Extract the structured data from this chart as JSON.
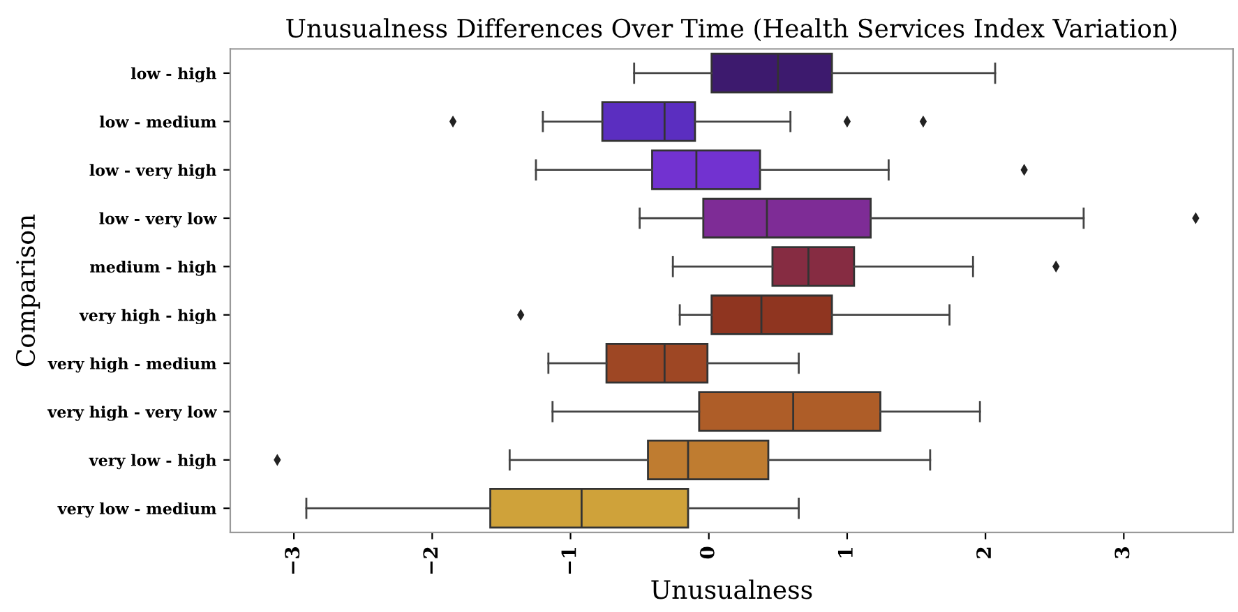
{
  "chart_data": {
    "type": "box",
    "orientation": "horizontal",
    "title": "Unusualness Differences Over Time (Health Services Index Variation)",
    "xlabel": "Unusualness",
    "ylabel": "Comparison",
    "categories": [
      "low - high",
      "low - medium",
      "low - very high",
      "low - very low",
      "medium - high",
      "very high - high",
      "very high - medium",
      "very high - very low",
      "very low - high",
      "very low - medium"
    ],
    "colors": [
      "#3d1a6e",
      "#5b2ec0",
      "#7232d0",
      "#7e2c96",
      "#862c42",
      "#8f3520",
      "#9e4724",
      "#ae5d28",
      "#bf7c30",
      "#cfa23a"
    ],
    "boxes": [
      {
        "low": -0.54,
        "q1": 0.02,
        "median": 0.5,
        "q3": 0.89,
        "high": 2.07
      },
      {
        "low": -1.2,
        "q1": -0.77,
        "median": -0.32,
        "q3": -0.1,
        "high": 0.59,
        "outliers": [
          -1.85,
          1.0,
          1.55
        ]
      },
      {
        "low": -1.25,
        "q1": -0.41,
        "median": -0.09,
        "q3": 0.37,
        "high": 1.3,
        "outliers": [
          2.28
        ]
      },
      {
        "low": -0.5,
        "q1": -0.04,
        "median": 0.42,
        "q3": 1.17,
        "high": 2.71,
        "outliers": [
          3.52
        ]
      },
      {
        "low": -0.26,
        "q1": 0.46,
        "median": 0.72,
        "q3": 1.05,
        "high": 1.91,
        "outliers": [
          2.51
        ]
      },
      {
        "low": -0.21,
        "q1": 0.02,
        "median": 0.38,
        "q3": 0.89,
        "high": 1.74,
        "outliers": [
          -1.36
        ]
      },
      {
        "low": -1.16,
        "q1": -0.74,
        "median": -0.32,
        "q3": -0.01,
        "high": 0.65
      },
      {
        "low": -1.13,
        "q1": -0.07,
        "median": 0.61,
        "q3": 1.24,
        "high": 1.96
      },
      {
        "low": -1.44,
        "q1": -0.44,
        "median": -0.15,
        "q3": 0.43,
        "high": 1.6,
        "outliers": [
          -3.12
        ]
      },
      {
        "low": -2.91,
        "q1": -1.58,
        "median": -0.92,
        "q3": -0.15,
        "high": 0.65
      }
    ],
    "xlim": [
      -3.46,
      3.79
    ],
    "xticks": [
      {
        "value": -3,
        "label": "−3"
      },
      {
        "value": -2,
        "label": "−2"
      },
      {
        "value": -1,
        "label": "−1"
      },
      0,
      1,
      2,
      3
    ],
    "grid": false
  }
}
